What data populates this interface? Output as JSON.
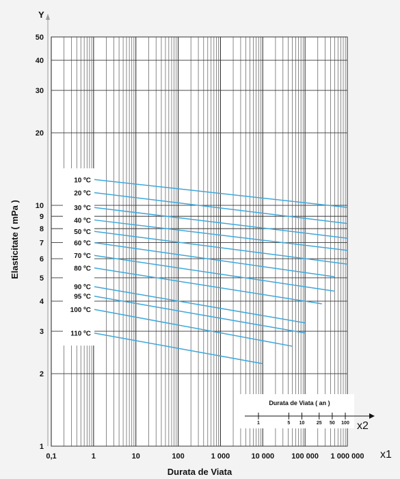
{
  "chart_data": {
    "type": "line",
    "xscale": "log",
    "yscale": "log",
    "xlim": [
      0.1,
      1000000
    ],
    "ylim": [
      1,
      50
    ],
    "x_axis_name": "x1",
    "y_axis_name": "Y",
    "xlabel": "Durata de Viata",
    "ylabel": "Elasticitate ( mPa )",
    "grid": true,
    "x_ticks": [
      {
        "v": 0.1,
        "label": "0,1"
      },
      {
        "v": 1,
        "label": "1"
      },
      {
        "v": 10,
        "label": "10"
      },
      {
        "v": 100,
        "label": "100"
      },
      {
        "v": 1000,
        "label": "1 000"
      },
      {
        "v": 10000,
        "label": "10 000"
      },
      {
        "v": 100000,
        "label": "100 000"
      },
      {
        "v": 1000000,
        "label": "1 000 000"
      }
    ],
    "y_ticks": [
      {
        "v": 1,
        "label": "1"
      },
      {
        "v": 2,
        "label": "2"
      },
      {
        "v": 3,
        "label": "3"
      },
      {
        "v": 4,
        "label": "4"
      },
      {
        "v": 5,
        "label": "5"
      },
      {
        "v": 6,
        "label": "6"
      },
      {
        "v": 7,
        "label": "7"
      },
      {
        "v": 8,
        "label": "8"
      },
      {
        "v": 9,
        "label": "9"
      },
      {
        "v": 10,
        "label": "10"
      },
      {
        "v": 20,
        "label": "20"
      },
      {
        "v": 30,
        "label": "30"
      },
      {
        "v": 40,
        "label": "40"
      },
      {
        "v": 50,
        "label": "50"
      }
    ],
    "series": [
      {
        "name": "10 ºC",
        "x": [
          1,
          1000000
        ],
        "y": [
          12.8,
          9.8
        ]
      },
      {
        "name": "20 ºC",
        "x": [
          1,
          1000000
        ],
        "y": [
          11.3,
          8.4
        ]
      },
      {
        "name": "30 ºC",
        "x": [
          1,
          1000000
        ],
        "y": [
          9.8,
          7.3
        ]
      },
      {
        "name": "40 ºC",
        "x": [
          1,
          1000000
        ],
        "y": [
          8.7,
          6.5
        ]
      },
      {
        "name": "50 ºC",
        "x": [
          1,
          1000000
        ],
        "y": [
          7.8,
          5.7
        ]
      },
      {
        "name": "60 ºC",
        "x": [
          1,
          500000
        ],
        "y": [
          7.0,
          5.05
        ]
      },
      {
        "name": "70 ºC",
        "x": [
          1,
          500000
        ],
        "y": [
          6.2,
          4.4
        ]
      },
      {
        "name": "80 ºC",
        "x": [
          1,
          250000
        ],
        "y": [
          5.5,
          3.9
        ]
      },
      {
        "name": "90 ºC",
        "x": [
          1,
          100000
        ],
        "y": [
          4.6,
          3.25
        ]
      },
      {
        "name": "95 ºC",
        "x": [
          1,
          100000
        ],
        "y": [
          4.2,
          2.95
        ]
      },
      {
        "name": "100 ºC",
        "x": [
          1,
          50000
        ],
        "y": [
          3.7,
          2.6
        ]
      },
      {
        "name": "110 ºC",
        "x": [
          1,
          10000
        ],
        "y": [
          2.95,
          2.2
        ]
      }
    ],
    "line_color": "#3ca7dc",
    "inset": {
      "title": "Durata de Viata ( an )",
      "axis_name": "x2",
      "ticks": [
        {
          "years": 1,
          "label": "1"
        },
        {
          "years": 5,
          "label": "5"
        },
        {
          "years": 10,
          "label": "10"
        },
        {
          "years": 25,
          "label": "25"
        },
        {
          "years": 50,
          "label": "50"
        },
        {
          "years": 100,
          "label": "100"
        }
      ]
    }
  }
}
